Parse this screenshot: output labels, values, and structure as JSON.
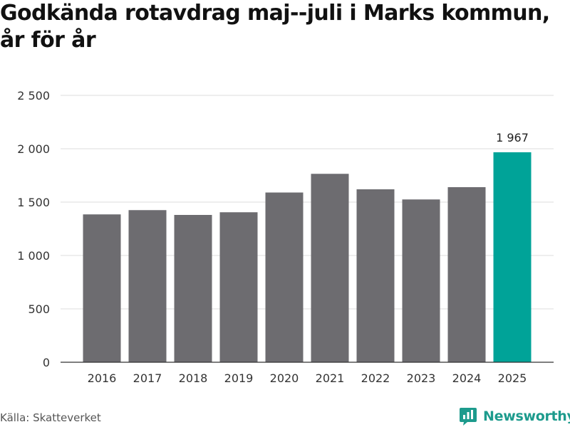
{
  "title": "Godkända rotavdrag maj--juli i Marks kommun, år för år",
  "source": "Källa: Skatteverket",
  "brand": {
    "name": "Newsworthy",
    "icon": "newsworthy-logo-icon",
    "color": "#1d9b8d"
  },
  "colors": {
    "bar": "#6d6c70",
    "highlight": "#00a398",
    "grid": "#dddddd",
    "axis": "#333333"
  },
  "chart_data": {
    "type": "bar",
    "title": "Godkända rotavdrag maj--juli i Marks kommun, år för år",
    "xlabel": "",
    "ylabel": "",
    "categories": [
      "2016",
      "2017",
      "2018",
      "2019",
      "2020",
      "2021",
      "2022",
      "2023",
      "2024",
      "2025"
    ],
    "values": [
      1385,
      1425,
      1380,
      1405,
      1590,
      1765,
      1620,
      1525,
      1640,
      1967
    ],
    "highlight_index": 9,
    "data_labels": [
      {
        "index": 9,
        "text": "1 967"
      }
    ],
    "ylim": [
      0,
      2500
    ],
    "yticks": [
      0,
      500,
      1000,
      1500,
      2000,
      2500
    ],
    "ytick_labels": [
      "0",
      "500",
      "1 000",
      "1 500",
      "2 000",
      "2 500"
    ],
    "grid": true,
    "legend": "none"
  }
}
